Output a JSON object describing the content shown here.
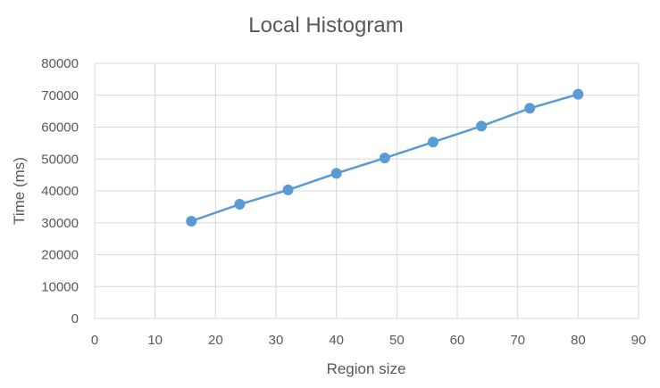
{
  "chart_data": {
    "type": "scatter",
    "title": "Local Histogram",
    "xlabel": "Region size",
    "ylabel": "Time (ms)",
    "xlim": [
      0,
      90
    ],
    "ylim": [
      0,
      80000
    ],
    "x_ticks": [
      0,
      10,
      20,
      30,
      40,
      50,
      60,
      70,
      80,
      90
    ],
    "y_ticks": [
      0,
      10000,
      20000,
      30000,
      40000,
      50000,
      60000,
      70000,
      80000
    ],
    "grid": true,
    "legend": "none",
    "series": [
      {
        "color": "#5b9bd5",
        "x": [
          16,
          24,
          32,
          40,
          48,
          56,
          64,
          72,
          80
        ],
        "y": [
          30500,
          35800,
          40300,
          45500,
          50300,
          55300,
          60300,
          65900,
          70300
        ]
      }
    ]
  }
}
